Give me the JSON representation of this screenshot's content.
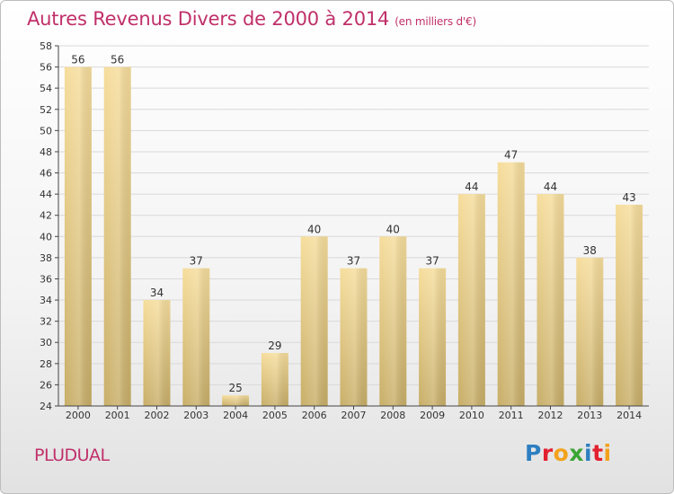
{
  "header": {
    "title": "Autres Revenus Divers de 2000 à 2014",
    "unit": "(en milliers d'€)"
  },
  "footer": {
    "commune": "PLUDUAL",
    "logo_letters": [
      "P",
      "r",
      "o",
      "x",
      "i",
      "t",
      "i"
    ]
  },
  "colors": {
    "title": "#c0306a",
    "bar_light": "#f5dc9a",
    "bar_dark": "#c9b06a",
    "grid": "#d8d8d8"
  },
  "chart_data": {
    "type": "bar",
    "title": "Autres Revenus Divers de 2000 à 2014",
    "subtitle": "(en milliers d'€)",
    "xlabel": "",
    "ylabel": "",
    "ylim": [
      24,
      58
    ],
    "ytick_step": 2,
    "grid": true,
    "categories": [
      "2000",
      "2001",
      "2002",
      "2003",
      "2004",
      "2005",
      "2006",
      "2007",
      "2008",
      "2009",
      "2010",
      "2011",
      "2012",
      "2013",
      "2014"
    ],
    "values": [
      56,
      56,
      34,
      37,
      25,
      29,
      40,
      37,
      40,
      37,
      44,
      47,
      44,
      38,
      43
    ]
  }
}
